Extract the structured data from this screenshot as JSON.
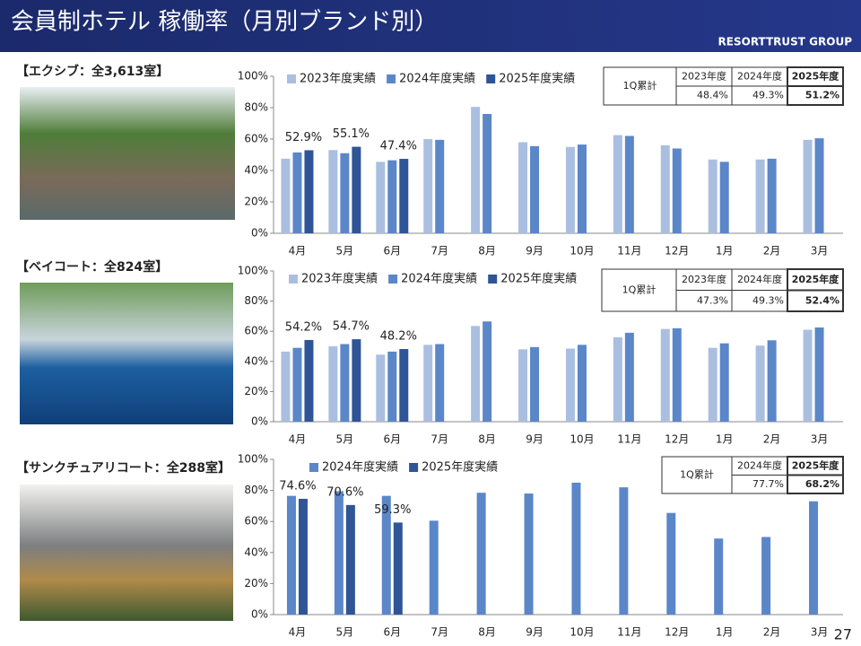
{
  "slide": {
    "title": "会員制ホテル 稼働率（月別ブランド別）",
    "company": "RESORTTRUST GROUP",
    "page": "27"
  },
  "chart_data": [
    {
      "type": "bar",
      "title": "【エクシブ：全3,613室】",
      "categories": [
        "4月",
        "5月",
        "6月",
        "7月",
        "8月",
        "9月",
        "10月",
        "11月",
        "12月",
        "1月",
        "2月",
        "3月"
      ],
      "series": [
        {
          "name": "2023年度実績",
          "color": "#aabfe0",
          "values": [
            47.5,
            53,
            45.5,
            60,
            80.5,
            58,
            55,
            62.5,
            56,
            47,
            47,
            59.5
          ]
        },
        {
          "name": "2024年度実績",
          "color": "#5b87c9",
          "values": [
            51.5,
            51,
            46.5,
            59.5,
            76,
            55.5,
            56.5,
            62,
            54,
            45.5,
            47.5,
            60.5
          ]
        },
        {
          "name": "2025年度実績",
          "color": "#2f5597",
          "values": [
            52.9,
            55.1,
            47.4,
            null,
            null,
            null,
            null,
            null,
            null,
            null,
            null,
            null
          ],
          "value_labels": [
            "52.9%",
            "55.1%",
            "47.4%",
            null,
            null,
            null,
            null,
            null,
            null,
            null,
            null,
            null
          ]
        }
      ],
      "ylim": [
        0,
        100
      ],
      "yticks": [
        {
          "value": 0,
          "label": "0%"
        },
        {
          "value": 20,
          "label": "20%"
        },
        {
          "value": 40,
          "label": "40%"
        },
        {
          "value": 60,
          "label": "60%"
        },
        {
          "value": 80,
          "label": "80%"
        },
        {
          "value": 100,
          "label": "100%"
        }
      ],
      "summary": {
        "label": "1Q累計",
        "headers": [
          "2023年度",
          "2024年度",
          "2025年度"
        ],
        "values": [
          "48.4%",
          "49.3%",
          "51.2%"
        ]
      }
    },
    {
      "type": "bar",
      "title": "【ベイコート：全824室】",
      "categories": [
        "4月",
        "5月",
        "6月",
        "7月",
        "8月",
        "9月",
        "10月",
        "11月",
        "12月",
        "1月",
        "2月",
        "3月"
      ],
      "series": [
        {
          "name": "2023年度実績",
          "color": "#aabfe0",
          "values": [
            46.5,
            50,
            44.5,
            51,
            63.5,
            48,
            48.5,
            56,
            61.5,
            49,
            50.5,
            61
          ]
        },
        {
          "name": "2024年度実績",
          "color": "#5b87c9",
          "values": [
            49,
            51.5,
            46.5,
            51.5,
            66.5,
            49.5,
            51,
            59,
            62,
            52,
            54,
            62.5
          ]
        },
        {
          "name": "2025年度実績",
          "color": "#2f5597",
          "values": [
            54.2,
            54.7,
            48.2,
            null,
            null,
            null,
            null,
            null,
            null,
            null,
            null,
            null
          ],
          "value_labels": [
            "54.2%",
            "54.7%",
            "48.2%",
            null,
            null,
            null,
            null,
            null,
            null,
            null,
            null,
            null
          ]
        }
      ],
      "ylim": [
        0,
        100
      ],
      "yticks": [
        {
          "value": 0,
          "label": "0%"
        },
        {
          "value": 20,
          "label": "20%"
        },
        {
          "value": 40,
          "label": "40%"
        },
        {
          "value": 60,
          "label": "60%"
        },
        {
          "value": 80,
          "label": "80%"
        },
        {
          "value": 100,
          "label": "100%"
        }
      ],
      "summary": {
        "label": "1Q累計",
        "headers": [
          "2023年度",
          "2024年度",
          "2025年度"
        ],
        "values": [
          "47.3%",
          "49.3%",
          "52.4%"
        ]
      }
    },
    {
      "type": "bar",
      "title": "【サンクチュアリコート：全288室】",
      "categories": [
        "4月",
        "5月",
        "6月",
        "7月",
        "8月",
        "9月",
        "10月",
        "11月",
        "12月",
        "1月",
        "2月",
        "3月"
      ],
      "series": [
        {
          "name": "2024年度実績",
          "color": "#5b87c9",
          "values": [
            76.5,
            79.5,
            76.5,
            60.5,
            78.5,
            78,
            85,
            82,
            65.5,
            49,
            50,
            73
          ]
        },
        {
          "name": "2025年度実績",
          "color": "#2f5597",
          "values": [
            74.6,
            70.6,
            59.3,
            null,
            null,
            null,
            null,
            null,
            null,
            null,
            null,
            null
          ],
          "value_labels": [
            "74.6%",
            "70.6%",
            "59.3%",
            null,
            null,
            null,
            null,
            null,
            null,
            null,
            null,
            null
          ]
        }
      ],
      "ylim": [
        0,
        100
      ],
      "yticks": [
        {
          "value": 0,
          "label": "0%"
        },
        {
          "value": 20,
          "label": "20%"
        },
        {
          "value": 40,
          "label": "40%"
        },
        {
          "value": 60,
          "label": "60%"
        },
        {
          "value": 80,
          "label": "80%"
        },
        {
          "value": 100,
          "label": "100%"
        }
      ],
      "summary": {
        "label": "1Q累計",
        "headers": [
          "2024年度",
          "2025年度"
        ],
        "values": [
          "77.7%",
          "68.2%"
        ]
      }
    }
  ]
}
